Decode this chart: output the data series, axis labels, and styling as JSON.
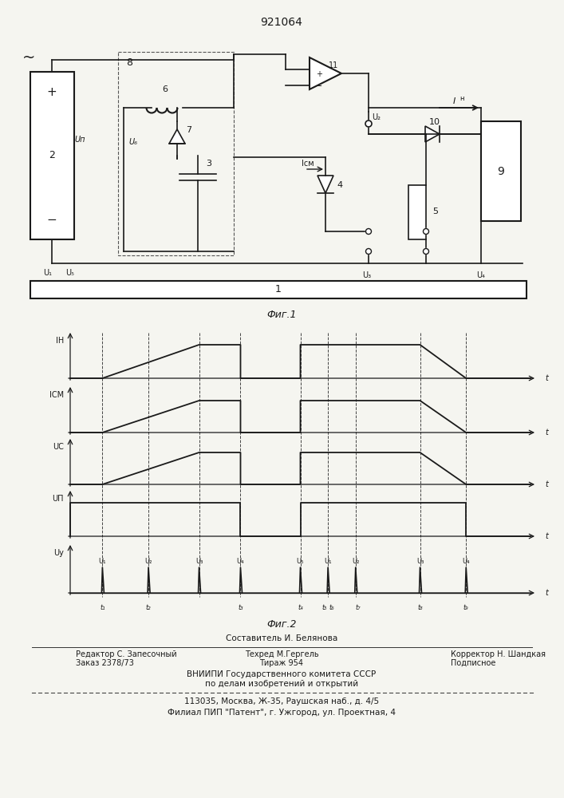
{
  "title": "921064",
  "fig1_label": "Фиг.1",
  "fig2_label": "Фиг.2",
  "composer_text": "Составитель И. Белянова",
  "editor_text": "Редактор С. Запесочный",
  "techred_text": "Техред М.Гергель",
  "corrector_text": "Корректор Н. Шандкая",
  "order_text": "Заказ 2378/73",
  "tirage_text": "Тираж 954",
  "podpisnoe_text": "Подписное",
  "vniip1": "ВНИИПИ Государственного комитета СССР",
  "vniip2": "по делам изобретений и открытий",
  "vniip3": "113035, Москва, Ж-35, Раушская наб., д. 4/5",
  "vniip4": "Филиал ПИП \"Патент\", г. Ужгород, ул. Проектная, 4",
  "bg_color": "#f5f5f0",
  "line_color": "#1a1a1a"
}
